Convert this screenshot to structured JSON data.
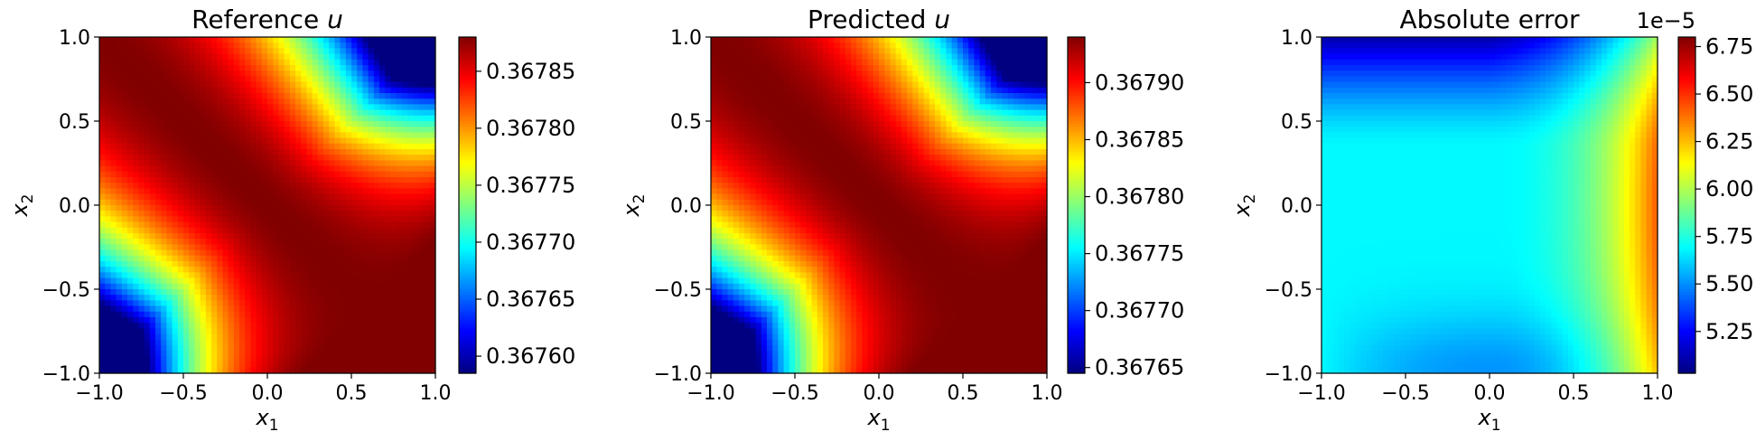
{
  "chart_data": [
    {
      "type": "heatmap",
      "title_prefix": "Reference ",
      "title_var": "u",
      "xlabel_base": "x",
      "xlabel_sub": "1",
      "ylabel_base": "x",
      "ylabel_sub": "2",
      "xlim": [
        -1.0,
        1.0
      ],
      "ylim": [
        -1.0,
        1.0
      ],
      "xticks": [
        "−1.0",
        "−0.5",
        "0.0",
        "0.5",
        "1.0"
      ],
      "yticks": [
        "−1.0",
        "−0.5",
        "0.0",
        "0.5",
        "1.0"
      ],
      "colormap": "jet",
      "colorbar": {
        "min": 0.367585,
        "max": 0.36788,
        "ticks": [
          0.3676,
          0.36765,
          0.3677,
          0.36775,
          0.3678,
          0.36785
        ],
        "tick_labels": [
          "0.36760",
          "0.36765",
          "0.36770",
          "0.36775",
          "0.36780",
          "0.36785"
        ],
        "offset_label": ""
      },
      "field": "reference"
    },
    {
      "type": "heatmap",
      "title_prefix": "Predicted ",
      "title_var": "u",
      "xlabel_base": "x",
      "xlabel_sub": "1",
      "ylabel_base": "x",
      "ylabel_sub": "2",
      "xlim": [
        -1.0,
        1.0
      ],
      "ylim": [
        -1.0,
        1.0
      ],
      "xticks": [
        "−1.0",
        "−0.5",
        "0.0",
        "0.5",
        "1.0"
      ],
      "yticks": [
        "−1.0",
        "−0.5",
        "0.0",
        "0.5",
        "1.0"
      ],
      "colormap": "jet",
      "colorbar": {
        "min": 0.367645,
        "max": 0.36794,
        "ticks": [
          0.36765,
          0.3677,
          0.36775,
          0.3678,
          0.36785,
          0.3679
        ],
        "tick_labels": [
          "0.36765",
          "0.36770",
          "0.36775",
          "0.36780",
          "0.36785",
          "0.36790"
        ],
        "offset_label": ""
      },
      "field": "predicted"
    },
    {
      "type": "heatmap",
      "title_prefix": "Absolute error",
      "title_var": "",
      "xlabel_base": "x",
      "xlabel_sub": "1",
      "ylabel_base": "x",
      "ylabel_sub": "2",
      "xlim": [
        -1.0,
        1.0
      ],
      "ylim": [
        -1.0,
        1.0
      ],
      "xticks": [
        "−1.0",
        "−0.5",
        "0.0",
        "0.5",
        "1.0"
      ],
      "yticks": [
        "−1.0",
        "−0.5",
        "0.0",
        "0.5",
        "1.0"
      ],
      "colormap": "jet",
      "colorbar": {
        "min": 5.03,
        "max": 6.8,
        "ticks": [
          5.25,
          5.5,
          5.75,
          6.0,
          6.25,
          6.5,
          6.75
        ],
        "tick_labels": [
          "5.25",
          "5.50",
          "5.75",
          "6.00",
          "6.25",
          "6.50",
          "6.75"
        ],
        "offset_label": "1e−5"
      },
      "field": "error"
    }
  ]
}
